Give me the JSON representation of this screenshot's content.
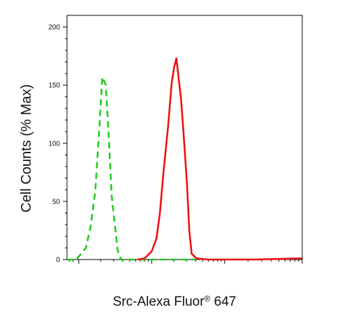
{
  "chart_data": {
    "type": "line",
    "title": "",
    "xlabel_main": "Src-Alexa Fluor",
    "xlabel_sup": "®",
    "xlabel_tail": " 647",
    "ylabel": "Cell Counts (% Max)",
    "ylim": [
      0,
      210
    ],
    "xlim": [
      0,
      1
    ],
    "y_ticks": [
      0,
      50,
      100,
      150,
      200
    ],
    "y_tick_labels": [
      "0",
      "50",
      "100",
      "150",
      "200"
    ],
    "grid": false,
    "legend": "none",
    "series": [
      {
        "color": "#22cc22",
        "style": "dashed",
        "x": [
          0.0,
          0.04,
          0.08,
          0.1,
          0.12,
          0.135,
          0.145,
          0.15,
          0.155,
          0.165,
          0.175,
          0.19,
          0.215,
          0.23,
          0.25,
          0.4,
          0.55
        ],
        "y": [
          0,
          0,
          10,
          28,
          58,
          105,
          140,
          157,
          155,
          150,
          115,
          55,
          8,
          0,
          0,
          0,
          0
        ]
      },
      {
        "color": "#ee1111",
        "style": "solid",
        "x": [
          0.3,
          0.33,
          0.36,
          0.38,
          0.395,
          0.41,
          0.43,
          0.445,
          0.455,
          0.465,
          0.475,
          0.485,
          0.495,
          0.51,
          0.52,
          0.53,
          0.55,
          0.6,
          0.8,
          1.0
        ],
        "y": [
          0,
          1,
          7,
          18,
          40,
          75,
          115,
          152,
          165,
          173,
          155,
          138,
          110,
          65,
          25,
          5,
          1,
          0,
          0,
          1
        ]
      }
    ]
  }
}
